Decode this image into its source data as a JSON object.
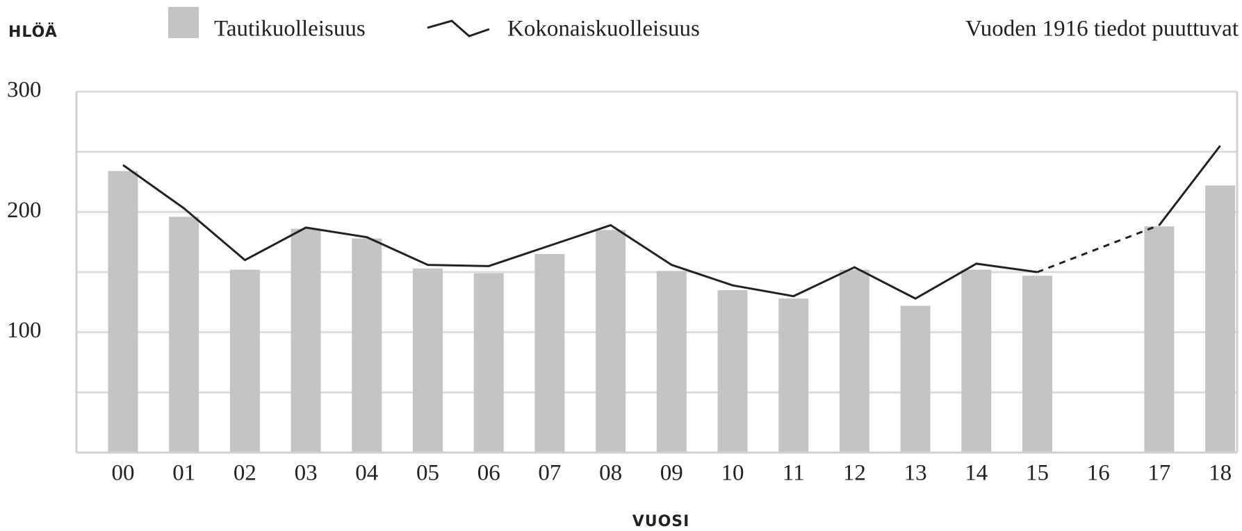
{
  "chart_data": {
    "type": "bar_line",
    "y_label": "HLÖÄ",
    "x_label": "VUOSI",
    "annotation": "Vuoden 1916 tiedot puuttuvat",
    "categories": [
      "00",
      "01",
      "02",
      "03",
      "04",
      "05",
      "06",
      "07",
      "08",
      "09",
      "10",
      "11",
      "12",
      "13",
      "14",
      "15",
      "16",
      "17",
      "18"
    ],
    "series": [
      {
        "name": "Tautikuolleisuus",
        "type": "bar",
        "color": "#c4c4c4",
        "values": [
          234,
          196,
          152,
          186,
          178,
          153,
          149,
          165,
          185,
          151,
          135,
          128,
          152,
          122,
          152,
          147,
          null,
          188,
          222
        ]
      },
      {
        "name": "Kokonaiskuolleisuus",
        "type": "line",
        "color": "#222222",
        "values": [
          239,
          203,
          160,
          187,
          179,
          156,
          155,
          172,
          189,
          156,
          139,
          130,
          154,
          128,
          157,
          150,
          null,
          189,
          255
        ]
      }
    ],
    "ylim": [
      0,
      300
    ],
    "yticks": [
      100,
      200,
      300
    ],
    "yminor": [
      50,
      150,
      250
    ],
    "grid": true,
    "bridge_gaps_dashed": true
  }
}
